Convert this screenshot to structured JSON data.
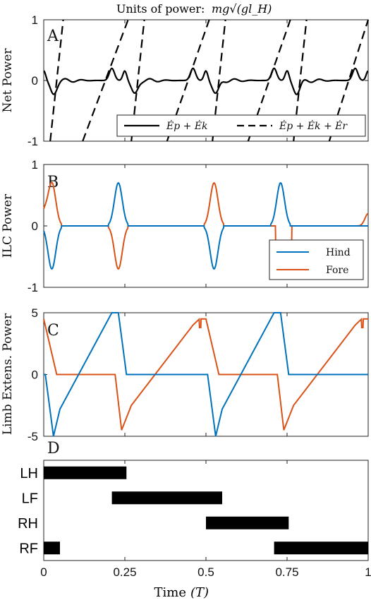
{
  "top_title": "Units of power:",
  "top_title_math": "mg√(gl_H)",
  "colors": {
    "hind": "#0072BD",
    "fore": "#D95319",
    "black": "#000000"
  },
  "chart_data": [
    {
      "panel": "A",
      "type": "line",
      "ylabel": "Net Power",
      "xlim": [
        0,
        1
      ],
      "ylim": [
        -1,
        1
      ],
      "xticks": [
        0,
        0.25,
        0.5,
        0.75,
        1
      ],
      "yticks": [
        "-1",
        "0",
        "1"
      ],
      "legend": {
        "placement": "bottom-right",
        "entries": [
          "Ėp + Ėk",
          "Ėp + Ėk + Ėr"
        ]
      },
      "series": [
        {
          "name": "Ėp + Ėk",
          "style": "solid",
          "description": "small oscillating curve near 0 with peaks ~0.2 at T≈0.21,0.71 and dips ~-0.2 at T≈0.025,0.27,0.525,0.765"
        },
        {
          "name": "Ėp + Ėk + Ėr",
          "style": "dashed",
          "ramps": [
            [
              0.02,
              -1,
              0.06,
              1
            ],
            [
              0.12,
              -1,
              0.26,
              1
            ],
            [
              0.27,
              -1,
              0.31,
              1
            ],
            [
              0.38,
              -1,
              0.51,
              1
            ],
            [
              0.52,
              -1,
              0.56,
              1
            ],
            [
              0.63,
              -1,
              0.76,
              1
            ],
            [
              0.77,
              -1,
              0.81,
              1
            ],
            [
              0.88,
              -1,
              1.0,
              1
            ]
          ]
        }
      ]
    },
    {
      "panel": "B",
      "type": "line",
      "ylabel": "ILC Power",
      "xlim": [
        0,
        1
      ],
      "ylim": [
        -1,
        1
      ],
      "xticks": [
        0,
        0.25,
        0.5,
        0.75,
        1
      ],
      "yticks": [
        "-1",
        "0",
        "1"
      ],
      "legend": {
        "placement": "bottom-right",
        "entries": [
          "Hind",
          "Fore"
        ]
      },
      "series": [
        {
          "name": "Hind",
          "pulses": [
            [
              0.025,
              -0.7
            ],
            [
              0.23,
              0.7
            ],
            [
              0.525,
              -0.7
            ],
            [
              0.73,
              0.7
            ]
          ]
        },
        {
          "name": "Fore",
          "pulses": [
            [
              0.025,
              0.7
            ],
            [
              0.23,
              -0.7
            ],
            [
              0.525,
              0.7
            ],
            [
              0.73,
              -0.3
            ],
            [
              0.75,
              -0.3
            ]
          ]
        }
      ]
    },
    {
      "panel": "C",
      "type": "line",
      "ylabel": "Limb Extens. Power",
      "xlim": [
        0,
        1
      ],
      "ylim": [
        -5,
        5
      ],
      "xticks": [
        0,
        0.25,
        0.5,
        0.75,
        1
      ],
      "yticks": [
        "-5",
        "0",
        "5"
      ],
      "series": [
        {
          "name": "Hind",
          "description": "drop to -5 at T≈0.03, linear ramp to +5 at T≈0.23, drop at 0.25; repeats with period 0.5"
        },
        {
          "name": "Fore",
          "description": "peak 4.5 at T≈0.0, drop to 0; at T≈0.24 dip to -4.5 then linear ramp to 4.5 at T≈0.48; repeats with period 0.5"
        }
      ]
    },
    {
      "panel": "D",
      "type": "gantt",
      "xlabel": "Time",
      "xlabel_unit": "(T)",
      "xlim": [
        0,
        1
      ],
      "xticks": [
        "0",
        "0.25",
        "0.5",
        "0.75",
        "1"
      ],
      "rows": [
        {
          "label": "LH",
          "intervals": [
            [
              0.0,
              0.255
            ]
          ]
        },
        {
          "label": "LF",
          "intervals": [
            [
              0.21,
              0.55
            ]
          ]
        },
        {
          "label": "RH",
          "intervals": [
            [
              0.5,
              0.755
            ]
          ]
        },
        {
          "label": "RF",
          "intervals": [
            [
              0.0,
              0.05
            ],
            [
              0.71,
              1.0
            ]
          ]
        }
      ]
    }
  ]
}
